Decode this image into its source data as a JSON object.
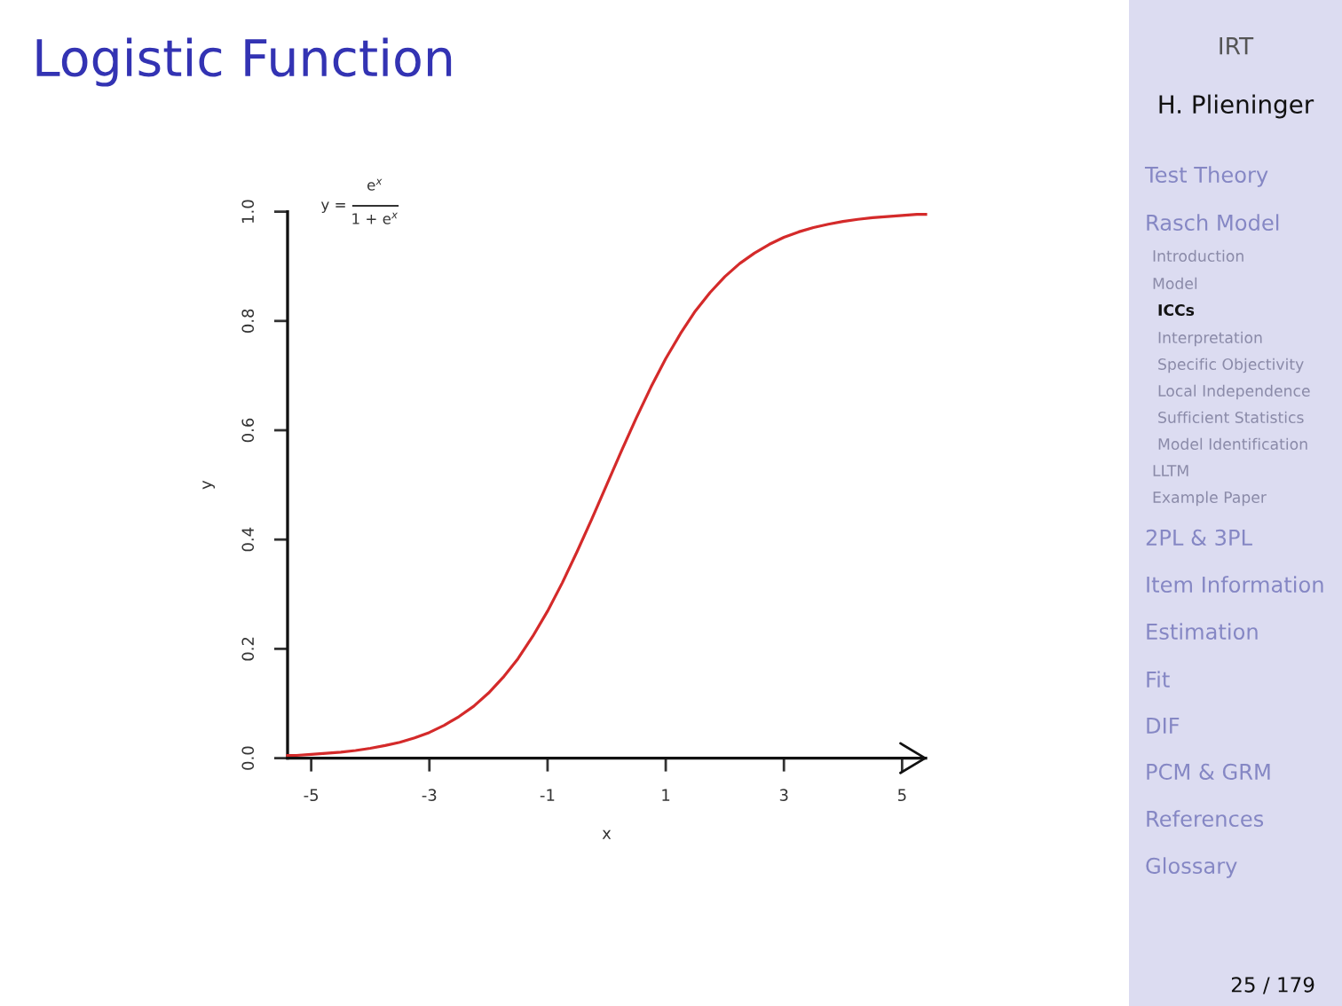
{
  "chart_data": {
    "type": "line",
    "title": "Logistic Function",
    "xlabel": "x",
    "ylabel": "y",
    "x": [
      -5.4,
      -5.25,
      -5.0,
      -4.75,
      -4.5,
      -4.25,
      -4.0,
      -3.75,
      -3.5,
      -3.25,
      -3.0,
      -2.75,
      -2.5,
      -2.25,
      -2.0,
      -1.75,
      -1.5,
      -1.25,
      -1.0,
      -0.75,
      -0.5,
      -0.25,
      0,
      0.25,
      0.5,
      0.75,
      1.0,
      1.25,
      1.5,
      1.75,
      2.0,
      2.25,
      2.5,
      2.75,
      3.0,
      3.25,
      3.5,
      3.75,
      4.0,
      4.25,
      4.5,
      4.75,
      5.0,
      5.25,
      5.4
    ],
    "series": [
      {
        "color": "#d42a2a",
        "values": [
          0.005,
          0.005,
          0.007,
          0.009,
          0.011,
          0.014,
          0.018,
          0.023,
          0.029,
          0.037,
          0.047,
          0.06,
          0.076,
          0.095,
          0.119,
          0.148,
          0.182,
          0.223,
          0.269,
          0.321,
          0.378,
          0.438,
          0.5,
          0.562,
          0.622,
          0.679,
          0.731,
          0.777,
          0.818,
          0.852,
          0.881,
          0.905,
          0.924,
          0.94,
          0.953,
          0.963,
          0.971,
          0.977,
          0.982,
          0.986,
          0.989,
          0.991,
          0.993,
          0.995,
          0.995
        ]
      }
    ],
    "xlim": [
      -5.4,
      5.4
    ],
    "ylim": [
      0,
      1.0
    ],
    "xticks": [
      -5,
      -3,
      -1,
      1,
      3,
      5
    ],
    "yticks": [
      {
        "value": 0,
        "label": "0.0"
      },
      0.2,
      0.4,
      0.6,
      0.8,
      {
        "value": 1.0,
        "label": "1.0"
      }
    ],
    "annotations": [
      "y =",
      "e$^{x}$",
      "1 + e$^{x}$",
      "IRT",
      "H. Plieninger",
      "Test Theory",
      "Rasch Model",
      "Introduction",
      "Model",
      "ICCs",
      "Interpretation",
      "Specific Objectivity",
      "Local Independence",
      "Sufficient Statistics",
      "Model Identification",
      "LLTM",
      "Example Paper",
      "2PL & 3PL",
      "Item Information",
      "Estimation",
      "Fit",
      "DIF",
      "PCM & GRM",
      "References",
      "Glossary",
      "25 / 179"
    ]
  }
}
